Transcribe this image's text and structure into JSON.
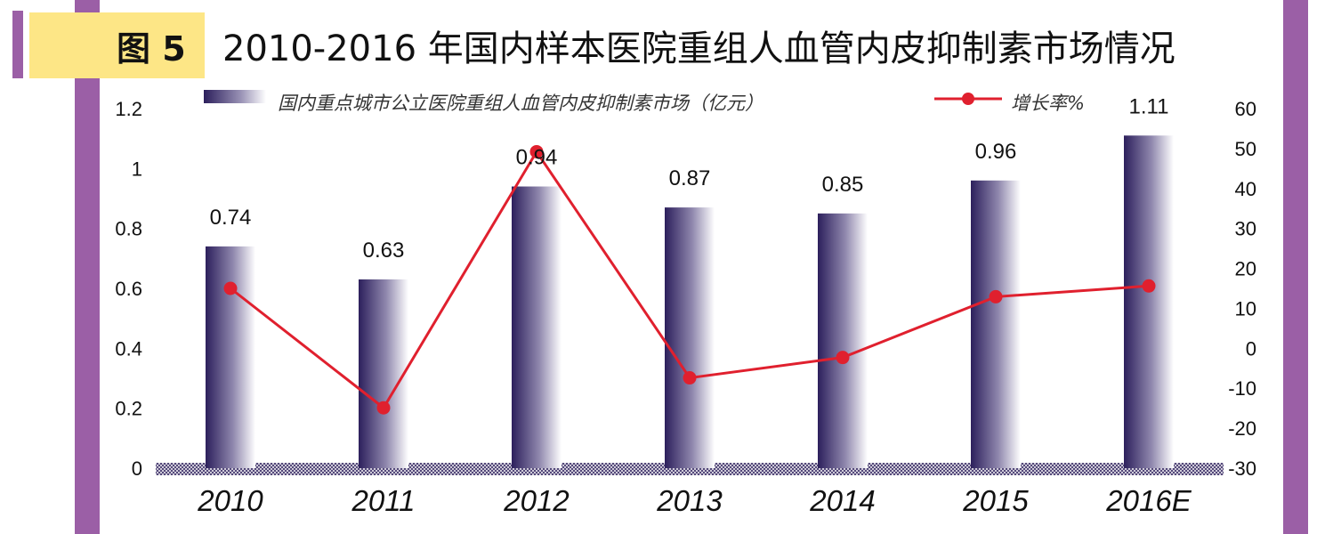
{
  "figure": {
    "badge": "图 5",
    "title": "2010-2016 年国内样本医院重组人血管内皮抑制素市场情况"
  },
  "colors": {
    "bar": "#2c1f5c",
    "line": "#e0202e",
    "frame": "#9b5fa6",
    "badge": "#fde686"
  },
  "chart_data": {
    "type": "bar",
    "categories": [
      "2010",
      "2011",
      "2012",
      "2013",
      "2014",
      "2015",
      "2016E"
    ],
    "series": [
      {
        "name": "国内重点城市公立医院重组人血管内皮抑制素市场（亿元）",
        "type": "bar",
        "axis": "left",
        "values": [
          0.74,
          0.63,
          0.94,
          0.87,
          0.85,
          0.96,
          1.11
        ]
      },
      {
        "name": "增长率%",
        "type": "line",
        "axis": "right",
        "values": [
          15,
          -14.9,
          49.2,
          -7.4,
          -2.3,
          12.9,
          15.6
        ]
      }
    ],
    "data_labels": [
      "0.74",
      "0.63",
      "0.94",
      "0.87",
      "0.85",
      "0.96",
      "1.11"
    ],
    "y_left": {
      "ylim": [
        0,
        1.2
      ],
      "ticks": [
        "0",
        "0.2",
        "0.4",
        "0.6",
        "0.8",
        "1",
        "1.2"
      ]
    },
    "y_right": {
      "ylim": [
        -30,
        60
      ],
      "ticks": [
        "-30",
        "-20",
        "-10",
        "0",
        "10",
        "20",
        "30",
        "40",
        "50",
        "60"
      ]
    },
    "legend_position": "top",
    "grid": false
  }
}
